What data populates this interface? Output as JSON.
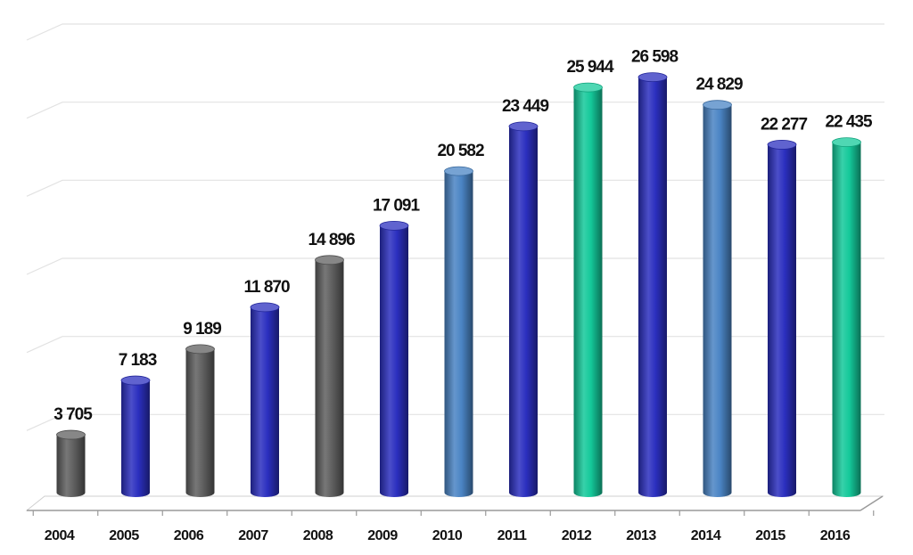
{
  "chart_data": {
    "type": "bar",
    "title": "",
    "xlabel": "",
    "ylabel": "",
    "categories": [
      "2004",
      "2005",
      "2006",
      "2007",
      "2008",
      "2009",
      "2010",
      "2011",
      "2012",
      "2013",
      "2014",
      "2015",
      "2016"
    ],
    "values": [
      3705,
      7183,
      9189,
      11870,
      14896,
      17091,
      20582,
      23449,
      25944,
      26598,
      24829,
      22277,
      22435
    ],
    "value_labels": [
      "3 705",
      "7 183",
      "9 189",
      "11 870",
      "14 896",
      "17 091",
      "20 582",
      "23 449",
      "25 944",
      "26 598",
      "24 829",
      "22 277",
      "22 435"
    ],
    "bar_colors": [
      "#5f5f5f",
      "#2b2fbf",
      "#5f5f5f",
      "#2b2fbf",
      "#5f5f5f",
      "#2b2fbf",
      "#4a84c4",
      "#2b2fbf",
      "#14c99a",
      "#2b2fbf",
      "#4a84c4",
      "#2b2fbf",
      "#14c99a"
    ],
    "ylim": [
      0,
      30000
    ],
    "grid": true,
    "legend": "none",
    "style": "3d-cylinder"
  }
}
